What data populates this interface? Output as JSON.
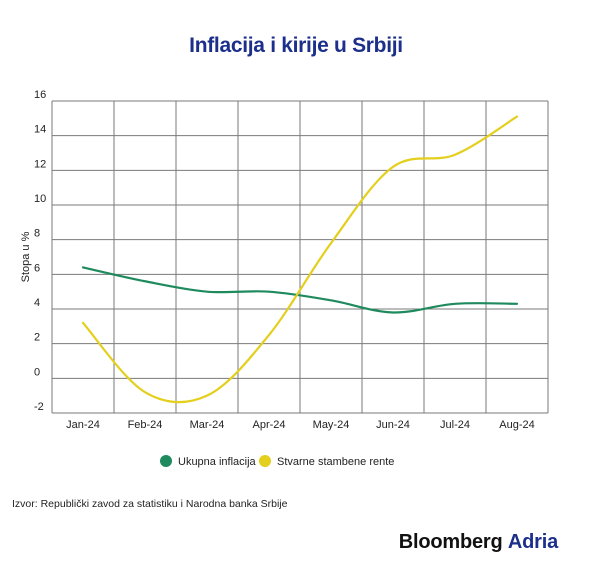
{
  "title": "Inflacija i kirije u Srbiji",
  "source": "Izvor: Republički zavod za statistiku i Narodna banka Srbije",
  "brand": {
    "name": "Bloomberg",
    "region": "Adria"
  },
  "chart_data": {
    "type": "line",
    "title": "Inflacija i kirije u Srbiji",
    "xlabel": "",
    "ylabel": "Stopa u %",
    "categories": [
      "Jan-24",
      "Feb-24",
      "Mar-24",
      "Apr-24",
      "May-24",
      "Jun-24",
      "Jul-24",
      "Aug-24"
    ],
    "ylim": [
      -2,
      16
    ],
    "yticks": [
      -2,
      0,
      2,
      4,
      6,
      8,
      10,
      12,
      14,
      16
    ],
    "grid": true,
    "legend_position": "bottom",
    "series": [
      {
        "name": "Ukupna inflacija",
        "color": "#1f8a5e",
        "values": [
          6.4,
          5.6,
          5.0,
          5.0,
          4.5,
          3.8,
          4.3,
          4.3
        ]
      },
      {
        "name": "Stvarne stambene rente",
        "color": "#e3cf1c",
        "values": [
          3.2,
          -0.8,
          -1.0,
          2.5,
          7.8,
          12.2,
          12.9,
          15.1
        ]
      }
    ]
  }
}
